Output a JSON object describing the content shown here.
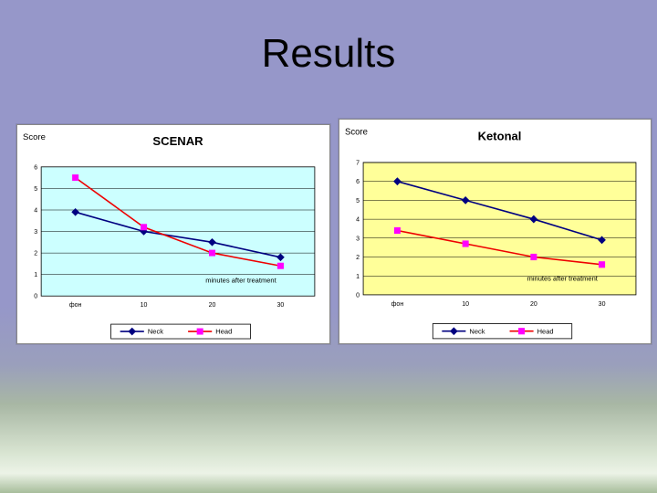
{
  "slide": {
    "title": "Results"
  },
  "chart_data": [
    {
      "type": "line",
      "title": "SCENAR",
      "ylabel": "Score",
      "annotation": "minutes after treatment",
      "categories": [
        "фон",
        "10",
        "20",
        "30"
      ],
      "ylim": [
        0,
        6
      ],
      "yticks": [
        0,
        1,
        2,
        3,
        4,
        5,
        6
      ],
      "plot_bg": "#ccffff",
      "grid": true,
      "legend_position": "bottom",
      "series": [
        {
          "name": "Neck",
          "color": "#000080",
          "marker": "diamond",
          "marker_color": "#000080",
          "values": [
            3.9,
            3.0,
            2.5,
            1.8
          ]
        },
        {
          "name": "Head",
          "color": "#ee0000",
          "marker": "square",
          "marker_color": "#ff00ff",
          "values": [
            5.5,
            3.2,
            2.0,
            1.4
          ]
        }
      ]
    },
    {
      "type": "line",
      "title": "Ketonal",
      "ylabel": "Score",
      "annotation": "minutes after treatment",
      "categories": [
        "фон",
        "10",
        "20",
        "30"
      ],
      "ylim": [
        0,
        7
      ],
      "yticks": [
        0,
        1,
        2,
        3,
        4,
        5,
        6,
        7
      ],
      "plot_bg": "#ffff99",
      "grid": true,
      "legend_position": "bottom",
      "series": [
        {
          "name": "Neck",
          "color": "#000080",
          "marker": "diamond",
          "marker_color": "#000080",
          "values": [
            6.0,
            5.0,
            4.0,
            2.9
          ]
        },
        {
          "name": "Head",
          "color": "#ee0000",
          "marker": "square",
          "marker_color": "#ff00ff",
          "values": [
            3.4,
            2.7,
            2.0,
            1.6
          ]
        }
      ]
    }
  ]
}
